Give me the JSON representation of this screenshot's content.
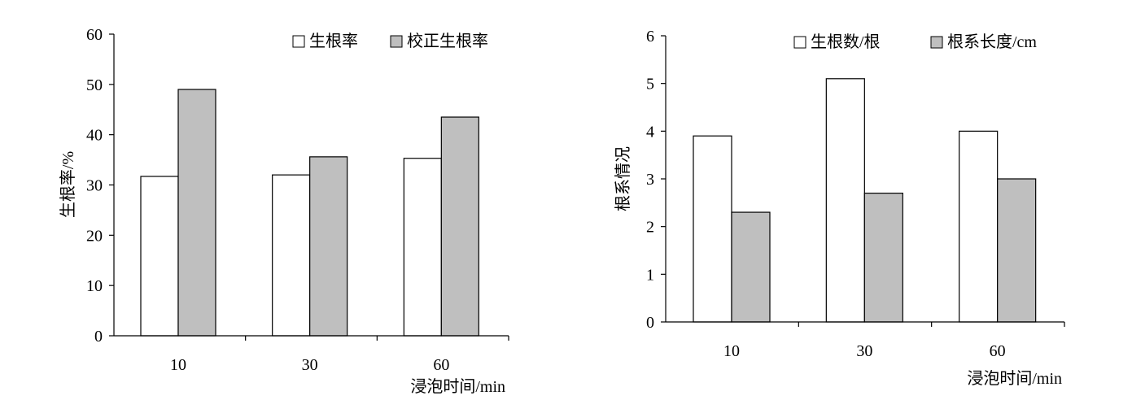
{
  "colors": {
    "series_white": "#ffffff",
    "series_gray": "#bfbfbf",
    "stroke": "#000000"
  },
  "chart_data": [
    {
      "type": "bar",
      "categories": [
        "10",
        "30",
        "60"
      ],
      "series": [
        {
          "name": "生根率",
          "values": [
            31.7,
            32.0,
            35.3
          ]
        },
        {
          "name": "校正生根率",
          "values": [
            49.0,
            35.6,
            43.5
          ]
        }
      ],
      "title": "",
      "xlabel": "浸泡时间/min",
      "ylabel": "生根率/%",
      "ylim": [
        0,
        60
      ],
      "yticks": [
        "0",
        "10",
        "20",
        "30",
        "40",
        "50",
        "60"
      ],
      "grid": false,
      "legend": "top-right"
    },
    {
      "type": "bar",
      "categories": [
        "10",
        "30",
        "60"
      ],
      "series": [
        {
          "name": "生根数/根",
          "values": [
            3.9,
            5.1,
            4.0
          ]
        },
        {
          "name": "根系长度/cm",
          "values": [
            2.3,
            2.7,
            3.0
          ]
        }
      ],
      "title": "",
      "xlabel": "浸泡时间/min",
      "ylabel": "根系情况",
      "ylim": [
        0,
        6
      ],
      "yticks": [
        "0",
        "1",
        "2",
        "3",
        "4",
        "5",
        "6"
      ],
      "grid": false,
      "legend": "top-right"
    }
  ]
}
